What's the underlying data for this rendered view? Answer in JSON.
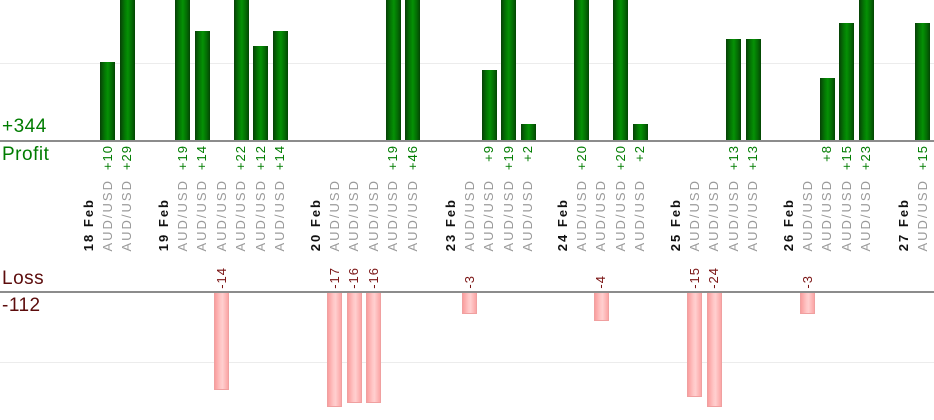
{
  "summary": {
    "profit_total": "+344",
    "profit_label": "Profit",
    "loss_label": "Loss",
    "loss_total": "-112"
  },
  "colors": {
    "profit_text": "#007c00",
    "loss_text": "#5c0c0c",
    "loss_value_text": "#7a1414",
    "profit_bar": "#047a04",
    "loss_bar": "#ffc6c6",
    "loss_bar_border": "#f0a0a0",
    "instrument_text": "#9a9a9a",
    "date_text": "#111111",
    "axis_line": "#8c8c8c",
    "gridline": "#ececec"
  },
  "chart_data": {
    "type": "bar",
    "title": "",
    "orientation": "vertical",
    "totals": {
      "profit": 344,
      "loss": -112
    },
    "axis": {
      "profit_label": "Profit",
      "profit_total_label": "+344",
      "loss_label": "Loss",
      "loss_total_label": "-112",
      "profit_gridline_value": 10,
      "loss_gridline_value": -10,
      "profit_visible_range": [
        0,
        18
      ],
      "loss_visible_range": [
        0,
        -16.5
      ],
      "grid": "horizontal-only",
      "note_bars_clipped": "profit bars clip at +18, loss bars clip at -16.5"
    },
    "groups": [
      {
        "date": "18 Feb",
        "trades": [
          {
            "instrument": "AUD/USD",
            "value": 10,
            "label": "+10"
          },
          {
            "instrument": "AUD/USD",
            "value": 29,
            "label": "+29"
          }
        ]
      },
      {
        "date": "19 Feb",
        "trades": [
          {
            "instrument": "AUD/USD",
            "value": 19,
            "label": "+19"
          },
          {
            "instrument": "AUD/USD",
            "value": 14,
            "label": "+14"
          },
          {
            "instrument": "AUD/USD",
            "value": -14,
            "label": "-14"
          },
          {
            "instrument": "AUD/USD",
            "value": 22,
            "label": "+22"
          },
          {
            "instrument": "AUD/USD",
            "value": 12,
            "label": "+12"
          },
          {
            "instrument": "AUD/USD",
            "value": 14,
            "label": "+14"
          }
        ]
      },
      {
        "date": "20 Feb",
        "trades": [
          {
            "instrument": "AUD/USD",
            "value": -17,
            "label": "-17"
          },
          {
            "instrument": "AUD/USD",
            "value": -16,
            "label": "-16"
          },
          {
            "instrument": "AUD/USD",
            "value": -16,
            "label": "-16"
          },
          {
            "instrument": "AUD/USD",
            "value": 19,
            "label": "+19"
          },
          {
            "instrument": "AUD/USD",
            "value": 46,
            "label": "+46"
          }
        ]
      },
      {
        "date": "23 Feb",
        "trades": [
          {
            "instrument": "AUD/USD",
            "value": -3,
            "label": "-3"
          },
          {
            "instrument": "AUD/USD",
            "value": 9,
            "label": "+9"
          },
          {
            "instrument": "AUD/USD",
            "value": 19,
            "label": "+19"
          },
          {
            "instrument": "AUD/USD",
            "value": 2,
            "label": "+2"
          }
        ]
      },
      {
        "date": "24 Feb",
        "trades": [
          {
            "instrument": "AUD/USD",
            "value": 20,
            "label": "+20"
          },
          {
            "instrument": "AUD/USD",
            "value": -4,
            "label": "-4"
          },
          {
            "instrument": "AUD/USD",
            "value": 20,
            "label": "+20"
          },
          {
            "instrument": "AUD/USD",
            "value": 2,
            "label": "+2"
          }
        ]
      },
      {
        "date": "25 Feb",
        "trades": [
          {
            "instrument": "AUD/USD",
            "value": -15,
            "label": "-15"
          },
          {
            "instrument": "AUD/USD",
            "value": -24,
            "label": "-24"
          },
          {
            "instrument": "AUD/USD",
            "value": 13,
            "label": "+13"
          },
          {
            "instrument": "AUD/USD",
            "value": 13,
            "label": "+13"
          }
        ]
      },
      {
        "date": "26 Feb",
        "trades": [
          {
            "instrument": "AUD/USD",
            "value": -3,
            "label": "-3"
          },
          {
            "instrument": "AUD/USD",
            "value": 8,
            "label": "+8"
          },
          {
            "instrument": "AUD/USD",
            "value": 15,
            "label": "+15"
          },
          {
            "instrument": "AUD/USD",
            "value": 23,
            "label": "+23"
          }
        ]
      },
      {
        "date": "27 Feb",
        "trades": [
          {
            "instrument": "AUD/USD",
            "value": 15,
            "label": "+15"
          }
        ]
      }
    ]
  }
}
